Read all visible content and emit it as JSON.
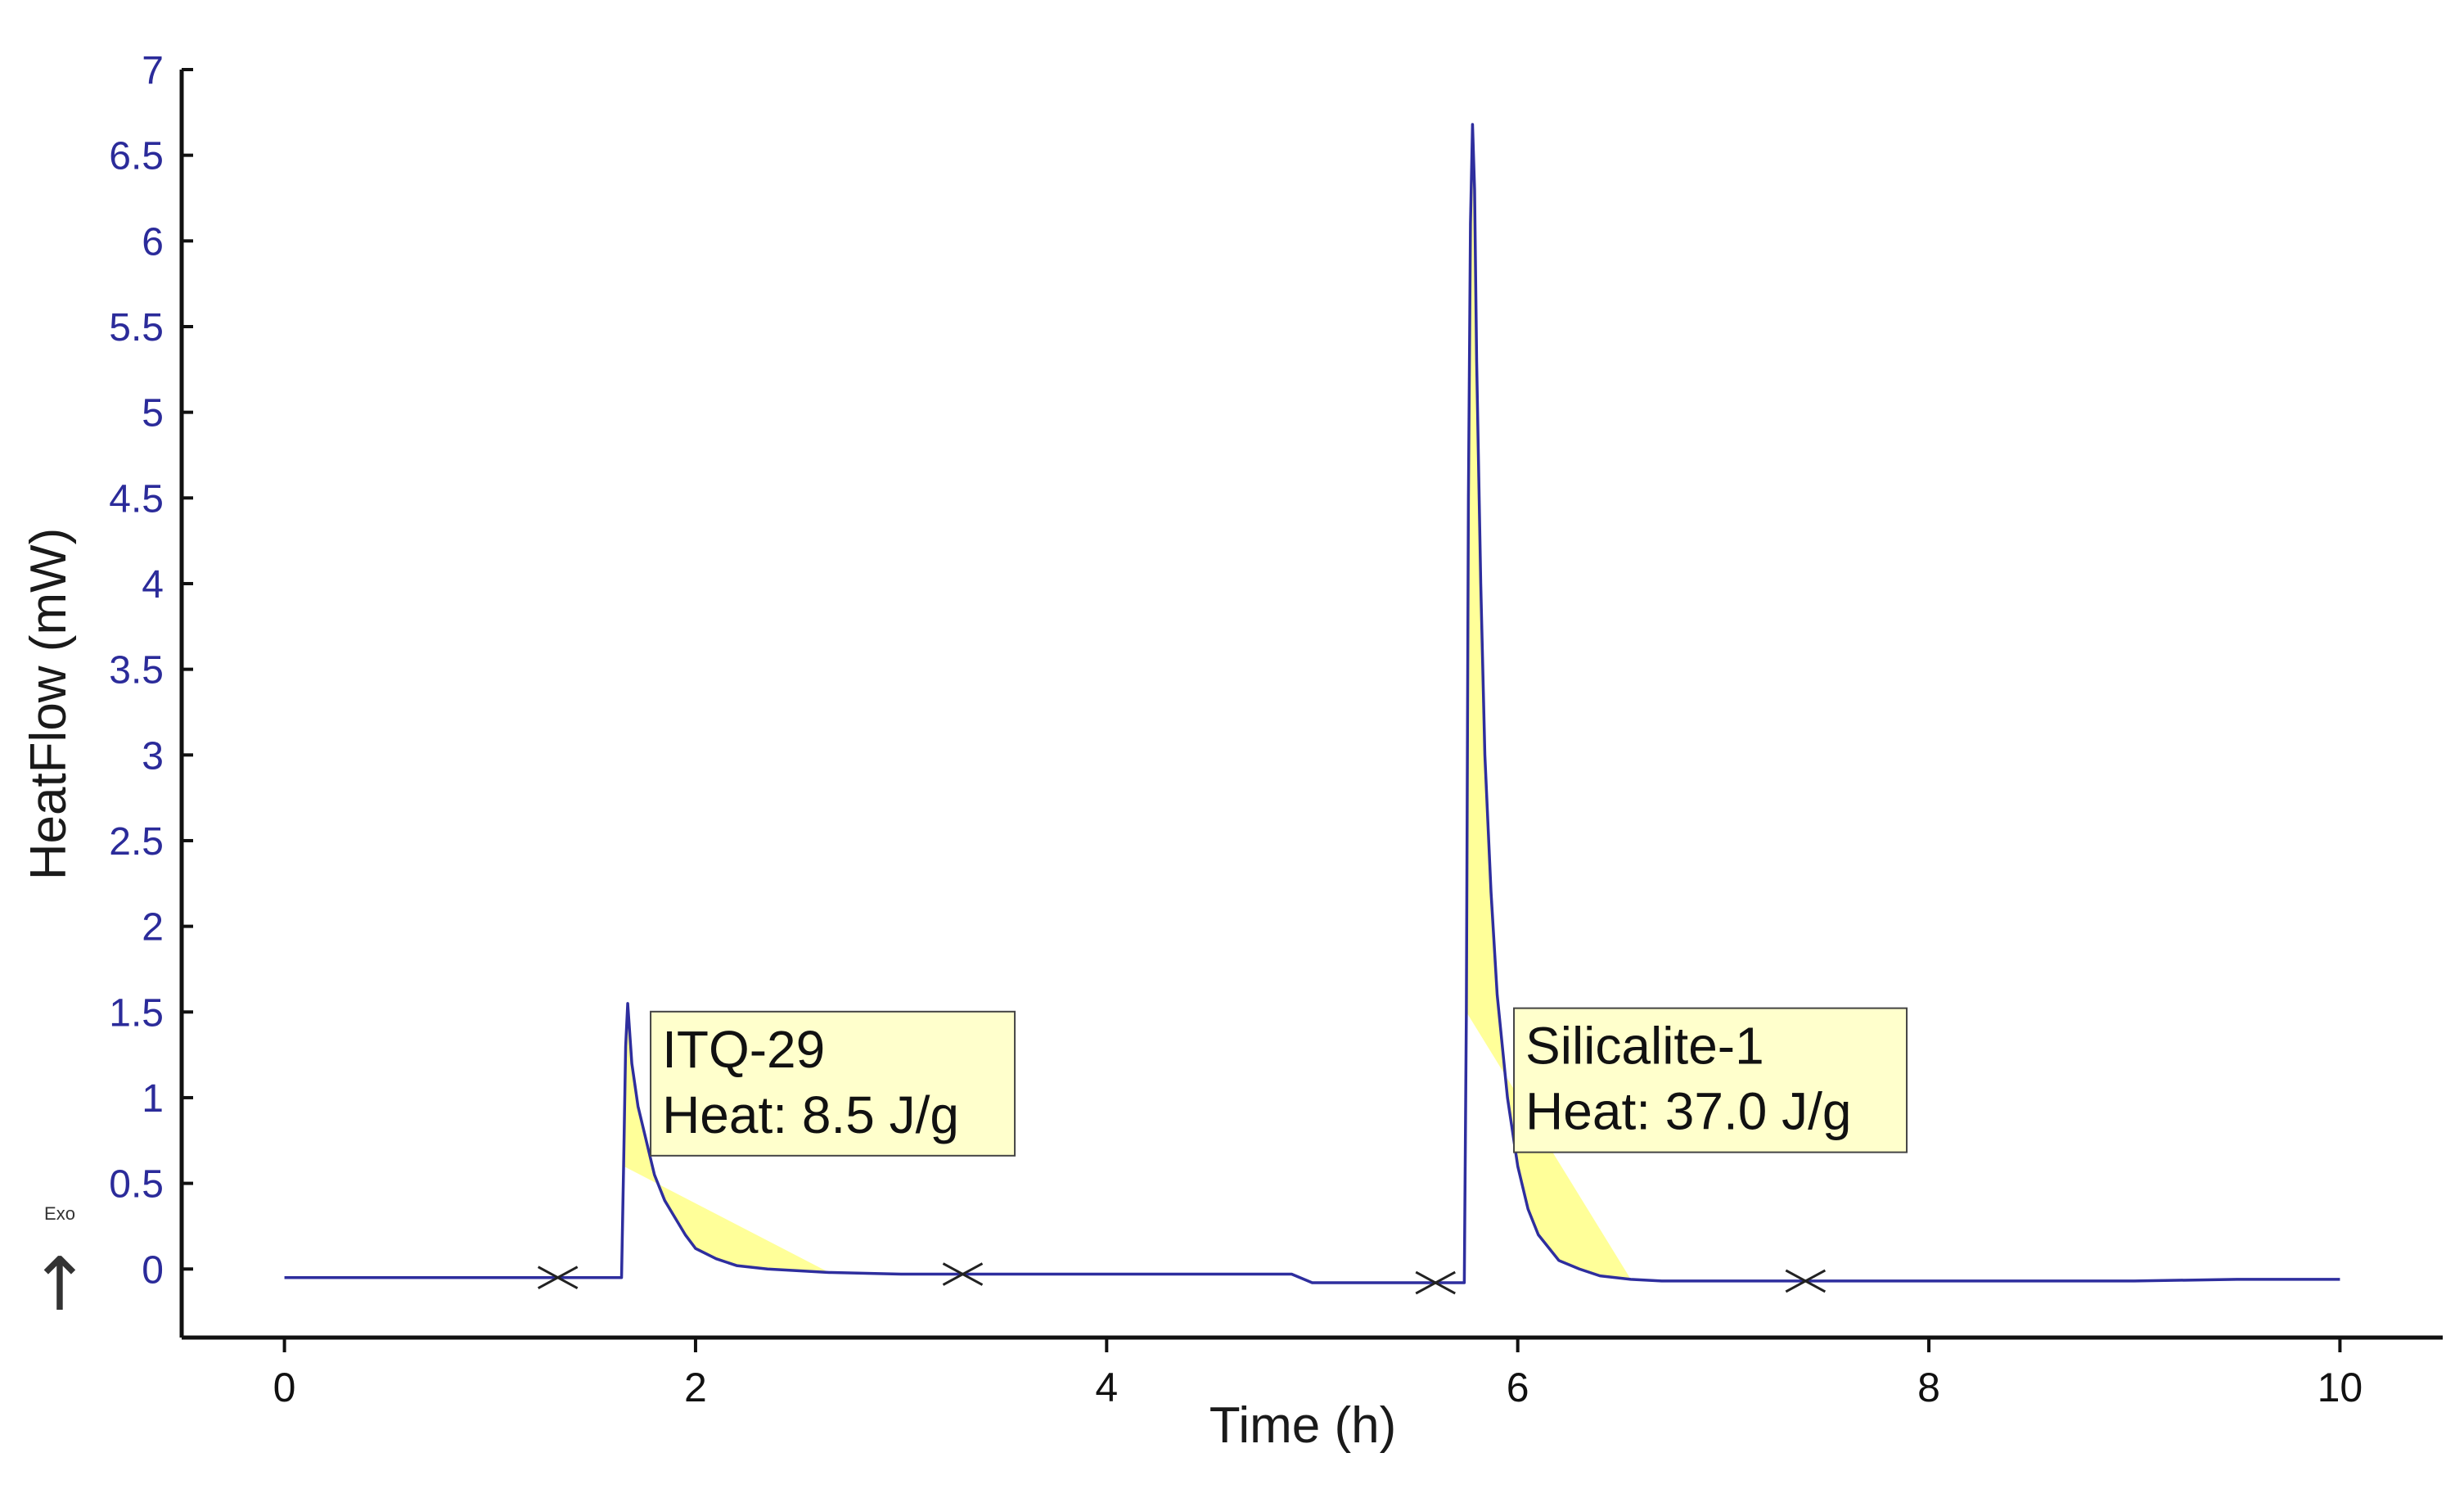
{
  "chart_data": {
    "type": "line",
    "title": "",
    "xlabel": "Time (h)",
    "ylabel": "HeatFlow (mW)",
    "xlim": [
      -0.5,
      10.5
    ],
    "ylim": [
      -0.4,
      7
    ],
    "xticks": [
      0,
      2,
      4,
      6,
      8,
      10
    ],
    "yticks": [
      0,
      0.5,
      1,
      1.5,
      2,
      2.5,
      3,
      3.5,
      4,
      4.5,
      5,
      5.5,
      6,
      6.5,
      7
    ],
    "grid": false,
    "exo_label": "Exo",
    "exo_arrow": "↑",
    "series": [
      {
        "name": "HeatFlow",
        "color": "#2e2e9e",
        "x": [
          0,
          0.5,
          1.0,
          1.3,
          1.5,
          1.64,
          1.65,
          1.66,
          1.67,
          1.69,
          1.72,
          1.76,
          1.8,
          1.85,
          1.9,
          1.95,
          2.0,
          2.1,
          2.2,
          2.35,
          2.5,
          2.65,
          3.0,
          3.3,
          3.6,
          4.0,
          4.5,
          4.9,
          5.0,
          5.1,
          5.4,
          5.6,
          5.74,
          5.75,
          5.76,
          5.77,
          5.78,
          5.79,
          5.8,
          5.82,
          5.84,
          5.87,
          5.9,
          5.95,
          6.0,
          6.05,
          6.1,
          6.2,
          6.3,
          6.4,
          6.55,
          6.7,
          7.0,
          7.4,
          8.0,
          8.5,
          9.0,
          9.5,
          10.0
        ],
        "y": [
          -0.05,
          -0.05,
          -0.05,
          -0.05,
          -0.05,
          -0.05,
          0.6,
          1.3,
          1.55,
          1.2,
          0.95,
          0.75,
          0.55,
          0.4,
          0.3,
          0.2,
          0.12,
          0.06,
          0.02,
          0.0,
          -0.01,
          -0.02,
          -0.03,
          -0.03,
          -0.03,
          -0.03,
          -0.03,
          -0.03,
          -0.08,
          -0.08,
          -0.08,
          -0.08,
          -0.08,
          1.5,
          4.5,
          6.1,
          6.68,
          6.3,
          5.3,
          4.0,
          3.0,
          2.2,
          1.6,
          1.0,
          0.6,
          0.35,
          0.2,
          0.05,
          0.0,
          -0.04,
          -0.06,
          -0.07,
          -0.07,
          -0.07,
          -0.07,
          -0.07,
          -0.07,
          -0.06,
          -0.06
        ]
      }
    ],
    "integration_markers": [
      {
        "x": 1.33,
        "y": -0.05
      },
      {
        "x": 3.3,
        "y": -0.03
      },
      {
        "x": 5.6,
        "y": -0.08
      },
      {
        "x": 7.4,
        "y": -0.07
      }
    ],
    "peaks": [
      {
        "fill": "#ffff99",
        "x_start": 1.65,
        "x_end": 2.65
      },
      {
        "fill": "#ffff99",
        "x_start": 5.75,
        "x_end": 6.55
      }
    ],
    "annotations": [
      {
        "line1": "ITQ-29",
        "line2": "Heat: 8.5 J/g",
        "anchor_x": 2.1,
        "anchor_y": 1.55
      },
      {
        "line1": "Silicalite-1",
        "line2": "Heat: 37.0 J/g",
        "anchor_x": 6.3,
        "anchor_y": 1.57
      }
    ]
  }
}
